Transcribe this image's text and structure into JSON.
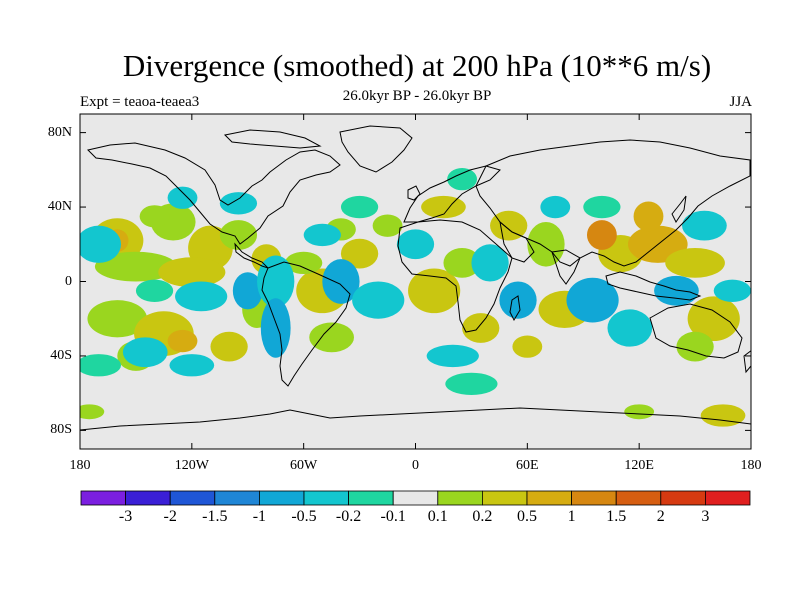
{
  "title": "Divergence (smoothed) at 200 hPa (10**6 m/s)",
  "subtitle_center": "26.0kyr BP - 26.0kyr BP",
  "subtitle_left": "Expt = teaoa-teaea3",
  "subtitle_right": "JJA",
  "latitude_labels": [
    "80N",
    "40N",
    "0",
    "40S",
    "80S"
  ],
  "longitude_labels": [
    "180",
    "120W",
    "60W",
    "0",
    "60E",
    "120E",
    "180"
  ],
  "colorbar": {
    "labels": [
      "-3",
      "-2",
      "-1.5",
      "-1",
      "-0.5",
      "-0.2",
      "-0.1",
      "0.1",
      "0.2",
      "0.5",
      "1",
      "1.5",
      "2",
      "3"
    ],
    "colors": [
      "#7b1fe0",
      "#3a1fd6",
      "#1f56d6",
      "#1f86d6",
      "#11a7d6",
      "#13c6cf",
      "#1fd6a0",
      "#e8e8e8",
      "#9ad61f",
      "#c9c611",
      "#d6ac11",
      "#d68711",
      "#d65e11",
      "#d63a11",
      "#e01f1f"
    ]
  },
  "map": {
    "background": "#e8e8e8",
    "lon_range": [
      -180,
      180
    ],
    "lat_range": [
      -90,
      90
    ],
    "anomaly_blobs": [
      {
        "lon": -160,
        "lat": 22,
        "rx": 14,
        "ry": 6,
        "level": 9
      },
      {
        "lon": -160,
        "lat": 22,
        "rx": 6,
        "ry": 3,
        "level": 10
      },
      {
        "lon": -130,
        "lat": 32,
        "rx": 12,
        "ry": 5,
        "level": 8
      },
      {
        "lon": -110,
        "lat": 18,
        "rx": 12,
        "ry": 6,
        "level": 9
      },
      {
        "lon": -150,
        "lat": 8,
        "rx": 22,
        "ry": 4,
        "level": 8
      },
      {
        "lon": -120,
        "lat": 5,
        "rx": 18,
        "ry": 4,
        "level": 9
      },
      {
        "lon": -95,
        "lat": 25,
        "rx": 10,
        "ry": 4,
        "level": 8
      },
      {
        "lon": -160,
        "lat": -20,
        "rx": 16,
        "ry": 5,
        "level": 8
      },
      {
        "lon": -135,
        "lat": -28,
        "rx": 16,
        "ry": 6,
        "level": 9
      },
      {
        "lon": -125,
        "lat": -32,
        "rx": 8,
        "ry": 3,
        "level": 10
      },
      {
        "lon": -150,
        "lat": -40,
        "rx": 10,
        "ry": 4,
        "level": 8
      },
      {
        "lon": -100,
        "lat": -35,
        "rx": 10,
        "ry": 4,
        "level": 9
      },
      {
        "lon": -85,
        "lat": -15,
        "rx": 8,
        "ry": 5,
        "level": 8
      },
      {
        "lon": -50,
        "lat": -5,
        "rx": 14,
        "ry": 6,
        "level": 9
      },
      {
        "lon": -60,
        "lat": 10,
        "rx": 10,
        "ry": 3,
        "level": 8
      },
      {
        "lon": -80,
        "lat": 12,
        "rx": 8,
        "ry": 4,
        "level": 9
      },
      {
        "lon": -45,
        "lat": -30,
        "rx": 12,
        "ry": 4,
        "level": 8
      },
      {
        "lon": -30,
        "lat": 15,
        "rx": 10,
        "ry": 4,
        "level": 9
      },
      {
        "lon": -15,
        "lat": 30,
        "rx": 8,
        "ry": 3,
        "level": 8
      },
      {
        "lon": -40,
        "lat": 28,
        "rx": 8,
        "ry": 3,
        "level": 8
      },
      {
        "lon": 15,
        "lat": 40,
        "rx": 12,
        "ry": 3,
        "level": 9
      },
      {
        "lon": 10,
        "lat": -5,
        "rx": 14,
        "ry": 6,
        "level": 9
      },
      {
        "lon": 35,
        "lat": -25,
        "rx": 10,
        "ry": 4,
        "level": 9
      },
      {
        "lon": 25,
        "lat": 10,
        "rx": 10,
        "ry": 4,
        "level": 8
      },
      {
        "lon": 50,
        "lat": 30,
        "rx": 10,
        "ry": 4,
        "level": 9
      },
      {
        "lon": 70,
        "lat": 20,
        "rx": 10,
        "ry": 6,
        "level": 8
      },
      {
        "lon": 80,
        "lat": -15,
        "rx": 14,
        "ry": 5,
        "level": 9
      },
      {
        "lon": 110,
        "lat": 15,
        "rx": 12,
        "ry": 5,
        "level": 9
      },
      {
        "lon": 130,
        "lat": 20,
        "rx": 16,
        "ry": 5,
        "level": 10
      },
      {
        "lon": 150,
        "lat": 10,
        "rx": 16,
        "ry": 4,
        "level": 9
      },
      {
        "lon": 160,
        "lat": -20,
        "rx": 14,
        "ry": 6,
        "level": 9
      },
      {
        "lon": 150,
        "lat": -35,
        "rx": 10,
        "ry": 4,
        "level": 8
      },
      {
        "lon": 125,
        "lat": 35,
        "rx": 8,
        "ry": 4,
        "level": 10
      },
      {
        "lon": 100,
        "lat": 25,
        "rx": 8,
        "ry": 4,
        "level": 11
      },
      {
        "lon": 60,
        "lat": -35,
        "rx": 8,
        "ry": 3,
        "level": 9
      },
      {
        "lon": -175,
        "lat": -70,
        "rx": 8,
        "ry": 2,
        "level": 8
      },
      {
        "lon": 165,
        "lat": -72,
        "rx": 12,
        "ry": 3,
        "level": 9
      },
      {
        "lon": 120,
        "lat": -70,
        "rx": 8,
        "ry": 2,
        "level": 8
      },
      {
        "lon": -140,
        "lat": 35,
        "rx": 8,
        "ry": 3,
        "level": 8
      },
      {
        "lon": -170,
        "lat": 20,
        "rx": 12,
        "ry": 5,
        "level": 5
      },
      {
        "lon": -125,
        "lat": 45,
        "rx": 8,
        "ry": 3,
        "level": 5
      },
      {
        "lon": -95,
        "lat": 42,
        "rx": 10,
        "ry": 3,
        "level": 5
      },
      {
        "lon": -115,
        "lat": -8,
        "rx": 14,
        "ry": 4,
        "level": 5
      },
      {
        "lon": -140,
        "lat": -5,
        "rx": 10,
        "ry": 3,
        "level": 6
      },
      {
        "lon": -90,
        "lat": -5,
        "rx": 8,
        "ry": 5,
        "level": 4
      },
      {
        "lon": -75,
        "lat": 0,
        "rx": 10,
        "ry": 7,
        "level": 5
      },
      {
        "lon": -75,
        "lat": -25,
        "rx": 8,
        "ry": 8,
        "level": 4
      },
      {
        "lon": -145,
        "lat": -38,
        "rx": 12,
        "ry": 4,
        "level": 5
      },
      {
        "lon": -120,
        "lat": -45,
        "rx": 12,
        "ry": 3,
        "level": 5
      },
      {
        "lon": -40,
        "lat": 0,
        "rx": 10,
        "ry": 6,
        "level": 4
      },
      {
        "lon": -20,
        "lat": -10,
        "rx": 14,
        "ry": 5,
        "level": 5
      },
      {
        "lon": -30,
        "lat": 40,
        "rx": 10,
        "ry": 3,
        "level": 6
      },
      {
        "lon": -50,
        "lat": 25,
        "rx": 10,
        "ry": 3,
        "level": 5
      },
      {
        "lon": 0,
        "lat": 20,
        "rx": 10,
        "ry": 4,
        "level": 5
      },
      {
        "lon": 25,
        "lat": 55,
        "rx": 8,
        "ry": 3,
        "level": 6
      },
      {
        "lon": 40,
        "lat": 10,
        "rx": 10,
        "ry": 5,
        "level": 5
      },
      {
        "lon": 20,
        "lat": -40,
        "rx": 14,
        "ry": 3,
        "level": 5
      },
      {
        "lon": 55,
        "lat": -10,
        "rx": 10,
        "ry": 5,
        "level": 4
      },
      {
        "lon": 95,
        "lat": -10,
        "rx": 14,
        "ry": 6,
        "level": 4
      },
      {
        "lon": 115,
        "lat": -25,
        "rx": 12,
        "ry": 5,
        "level": 5
      },
      {
        "lon": 140,
        "lat": -5,
        "rx": 12,
        "ry": 4,
        "level": 4
      },
      {
        "lon": 155,
        "lat": 30,
        "rx": 12,
        "ry": 4,
        "level": 5
      },
      {
        "lon": 100,
        "lat": 40,
        "rx": 10,
        "ry": 3,
        "level": 6
      },
      {
        "lon": 75,
        "lat": 40,
        "rx": 8,
        "ry": 3,
        "level": 5
      },
      {
        "lon": 170,
        "lat": -5,
        "rx": 10,
        "ry": 3,
        "level": 5
      },
      {
        "lon": 30,
        "lat": -55,
        "rx": 14,
        "ry": 3,
        "level": 6
      },
      {
        "lon": -170,
        "lat": -45,
        "rx": 12,
        "ry": 3,
        "level": 6
      }
    ]
  }
}
